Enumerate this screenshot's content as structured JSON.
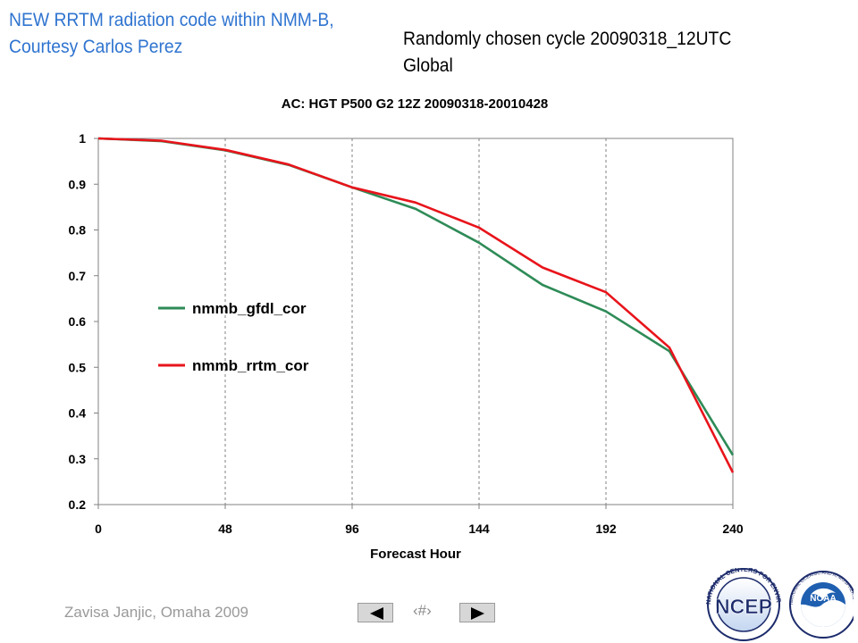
{
  "slide": {
    "title_line1": "NEW RRTM radiation code within NMM-B,",
    "title_line2": "Courtesy Carlos Perez",
    "subtitle_line1": "Randomly chosen cycle 20090318_12UTC",
    "subtitle_line2": "Global",
    "footer_author": "Zavisa Janjic, Omaha 2009",
    "page_number": "‹#›"
  },
  "logos": {
    "ncep_text": "NCEP",
    "ncep_ring_text": "NATIONAL CENTERS FOR ENVIRONMENTAL PREDICTION",
    "noaa_text": "NOAA",
    "noaa_ring_text": "NATIONAL OCEANIC AND ATMOSPHERIC ADMINISTRATION · U.S. DEPARTMENT OF COMMERCE"
  },
  "icons": {
    "prev": "triangle-left-icon",
    "next": "triangle-right-icon"
  },
  "colors": {
    "title": "#2f74d0",
    "gfdl": "#2e8b57",
    "rrtm": "#e8141b"
  },
  "chart_data": {
    "type": "line",
    "title": "AC: HGT P500 G2 12Z 20090318-20010428",
    "xlabel": "Forecast Hour",
    "ylabel": "",
    "xlim": [
      0,
      240
    ],
    "ylim": [
      0.2,
      1.0
    ],
    "xticks": [
      0,
      48,
      96,
      144,
      192,
      240
    ],
    "yticks": [
      0.2,
      0.3,
      0.4,
      0.5,
      0.6,
      0.7,
      0.8,
      0.9,
      1.0
    ],
    "ytick_labels": [
      "0.2",
      "0.3",
      "0.4",
      "0.5",
      "0.6",
      "0.7",
      "0.8",
      "0.9",
      "1"
    ],
    "grid": {
      "vertical": true,
      "horizontal": false
    },
    "legend_position": "left-middle",
    "x": [
      0,
      24,
      48,
      72,
      96,
      120,
      144,
      168,
      192,
      216,
      240
    ],
    "series": [
      {
        "name": "nmmb_gfdl_cor",
        "color": "#2e8b57",
        "values": [
          1.0,
          0.994,
          0.974,
          0.942,
          0.893,
          0.846,
          0.772,
          0.68,
          0.622,
          0.535,
          0.308
        ]
      },
      {
        "name": "nmmb_rrtm_cor",
        "color": "#e8141b",
        "values": [
          1.0,
          0.995,
          0.975,
          0.943,
          0.893,
          0.86,
          0.805,
          0.718,
          0.664,
          0.543,
          0.27
        ]
      }
    ]
  }
}
